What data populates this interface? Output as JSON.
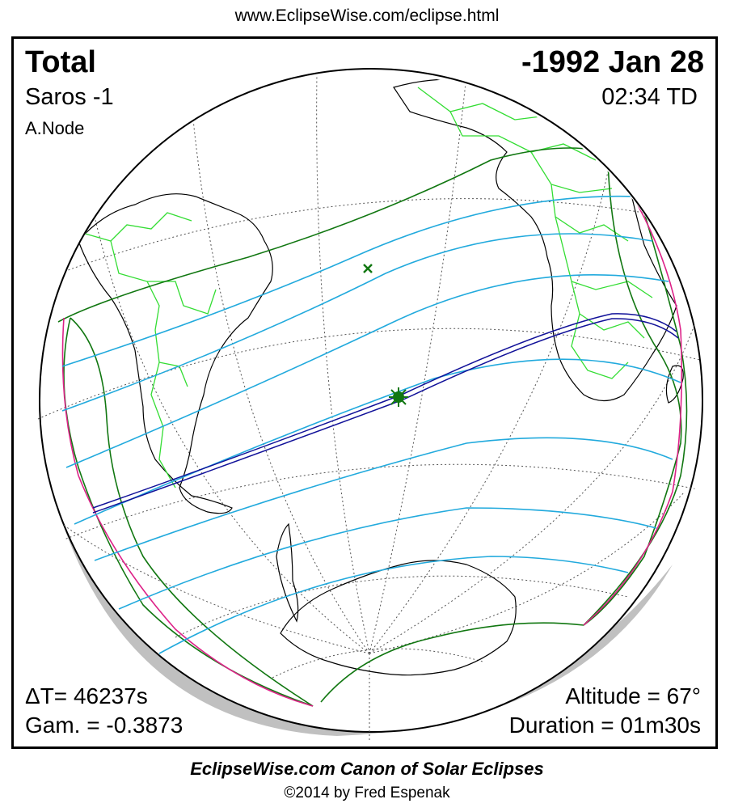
{
  "header": {
    "url": "www.EclipseWise.com/eclipse.html"
  },
  "eclipse": {
    "type": "Total",
    "date": "-1992 Jan 28",
    "saros": "Saros  -1",
    "time": "02:34 TD",
    "node": "A.Node",
    "delta_t": "ΔT=  46237s",
    "gamma": "Gam. = -0.3873",
    "altitude": "Altitude = 67°",
    "duration": "Duration = 01m30s"
  },
  "footer": {
    "title": "EclipseWise.com Canon of Solar Eclipses",
    "copyright": "©2014 by Fred Espenak"
  },
  "colors": {
    "coastline": "#000000",
    "borders": "#33dd33",
    "penumbral_limits": "#117711",
    "magnitude_curves": "#22aadd",
    "central_path": "#111199",
    "rise_set_curves": "#dd2288",
    "globe_shadow": "#c0c0c0"
  }
}
